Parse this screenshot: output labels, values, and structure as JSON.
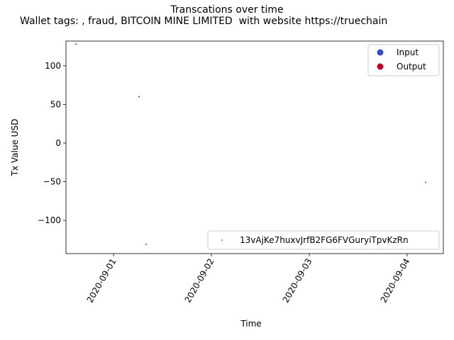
{
  "chart_data": {
    "type": "scatter",
    "title": "Transcations over time",
    "subtitle": "Wallet tags: , fraud, BITCOIN MINE LIMITED  with website https://truechain",
    "x_label": "Time",
    "y_label": "Tx Value USD",
    "xlim": [
      18505.514,
      18509.37
    ],
    "ylim": [
      -143,
      132
    ],
    "xticks": [
      {
        "value": 18506,
        "label": "2020-09-01"
      },
      {
        "value": 18507,
        "label": "2020-09-02"
      },
      {
        "value": 18508,
        "label": "2020-09-03"
      },
      {
        "value": 18509,
        "label": "2020-09-04"
      }
    ],
    "yticks": [
      {
        "value": -100,
        "label": "−100"
      },
      {
        "value": -50,
        "label": "−50"
      },
      0,
      50,
      100
    ],
    "legend_loc": "upper right",
    "series": [
      {
        "name": "Input",
        "color": "#3b4cc0",
        "x": [
          18506.333,
          18509.188
        ],
        "values": [
          -131,
          -51
        ]
      },
      {
        "name": "Output",
        "color": "#b40426",
        "x": [
          18505.616,
          18506.261
        ],
        "values": [
          128,
          60
        ]
      }
    ],
    "legend2": {
      "loc": "lower right",
      "entries": [
        {
          "name": "13vAjKe7huxvJrfB2FG6FVGuryiTpvKzRn",
          "color": "#1f9e89"
        }
      ]
    }
  }
}
